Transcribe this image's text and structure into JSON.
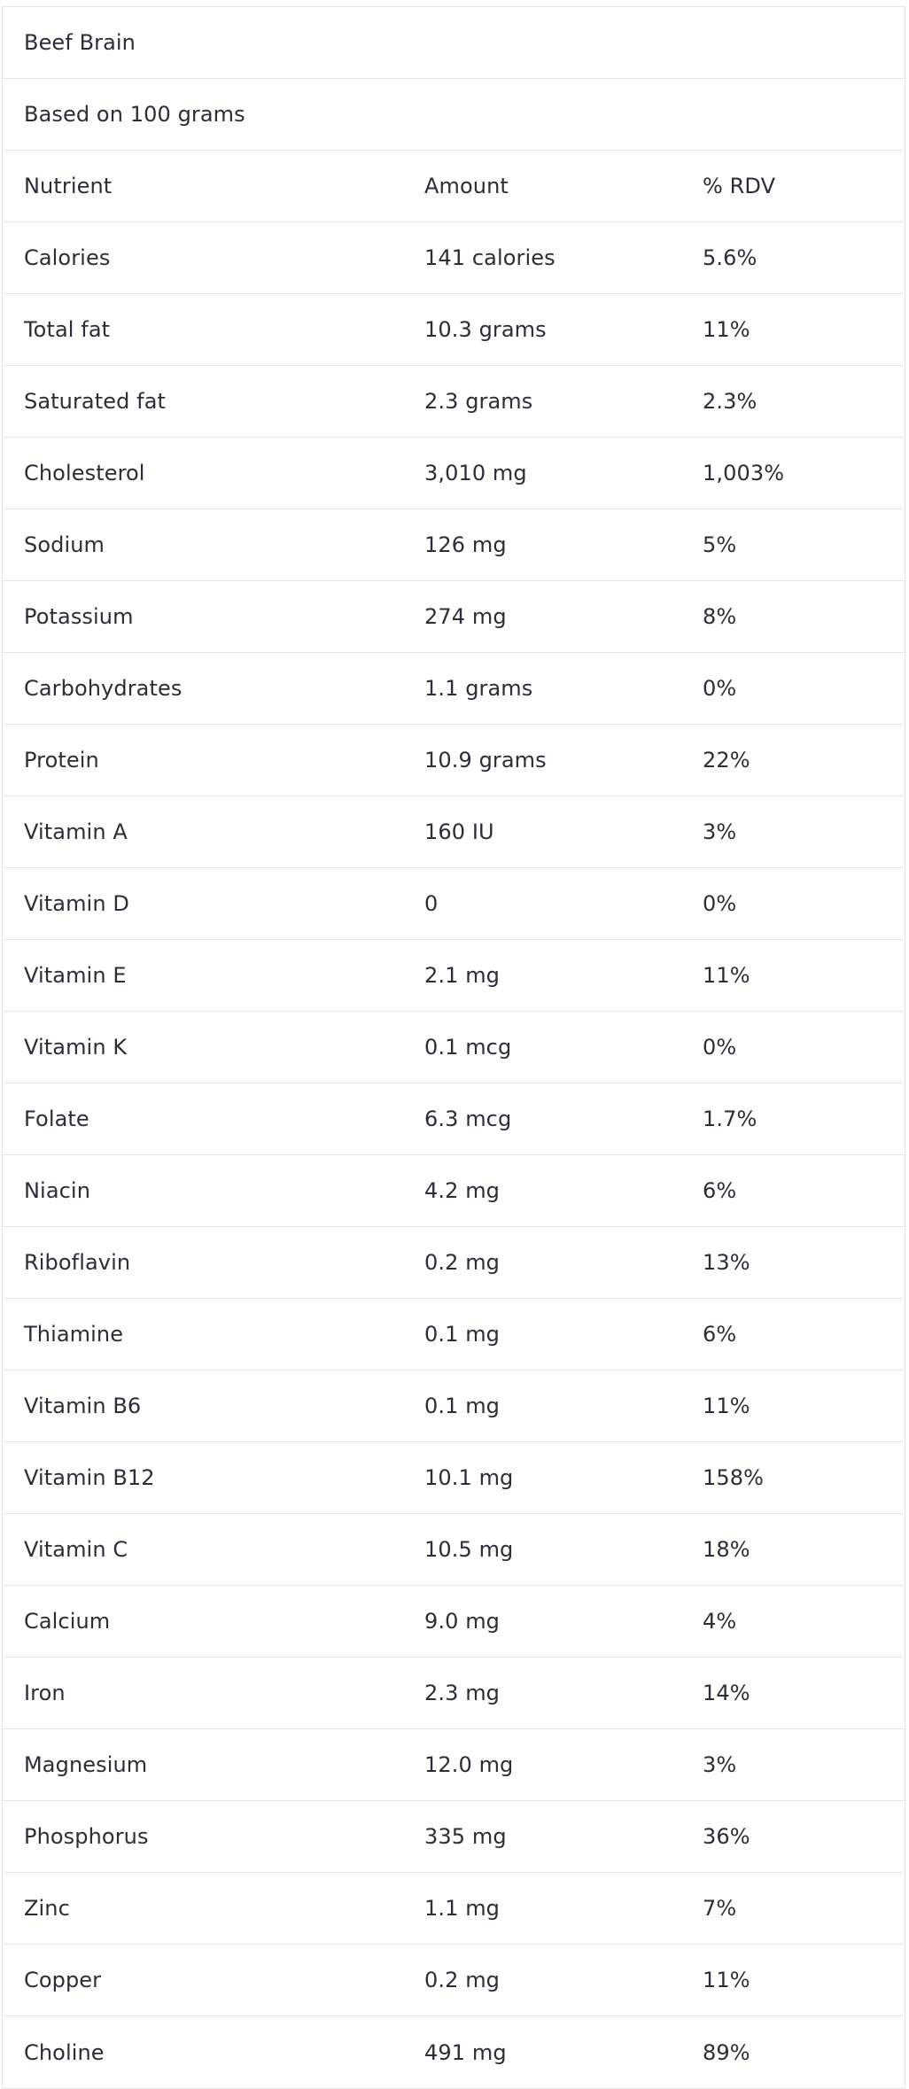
{
  "title": "Beef Brain",
  "subtitle": "Based on 100 grams",
  "headers": {
    "nutrient": "Nutrient",
    "amount": "Amount",
    "rdv": "% RDV"
  },
  "rows": [
    {
      "nutrient": "Calories",
      "amount": "141 calories",
      "rdv": "5.6%"
    },
    {
      "nutrient": "Total fat",
      "amount": "10.3 grams",
      "rdv": "11%"
    },
    {
      "nutrient": "Saturated fat",
      "amount": "2.3 grams",
      "rdv": "2.3%"
    },
    {
      "nutrient": "Cholesterol",
      "amount": "3,010 mg",
      "rdv": "1,003%"
    },
    {
      "nutrient": "Sodium",
      "amount": "126 mg",
      "rdv": "5%"
    },
    {
      "nutrient": "Potassium",
      "amount": "274 mg",
      "rdv": "8%"
    },
    {
      "nutrient": "Carbohydrates",
      "amount": "1.1 grams",
      "rdv": "0%"
    },
    {
      "nutrient": "Protein",
      "amount": "10.9 grams",
      "rdv": "22%"
    },
    {
      "nutrient": "Vitamin A",
      "amount": "160 IU",
      "rdv": "3%"
    },
    {
      "nutrient": "Vitamin D",
      "amount": "0",
      "rdv": "0%"
    },
    {
      "nutrient": "Vitamin E",
      "amount": "2.1 mg",
      "rdv": "11%"
    },
    {
      "nutrient": "Vitamin K",
      "amount": "0.1 mcg",
      "rdv": "0%"
    },
    {
      "nutrient": "Folate",
      "amount": "6.3 mcg",
      "rdv": "1.7%"
    },
    {
      "nutrient": "Niacin",
      "amount": "4.2 mg",
      "rdv": "6%"
    },
    {
      "nutrient": "Riboflavin",
      "amount": "0.2 mg",
      "rdv": "13%"
    },
    {
      "nutrient": "Thiamine",
      "amount": "0.1 mg",
      "rdv": "6%"
    },
    {
      "nutrient": "Vitamin B6",
      "amount": "0.1 mg",
      "rdv": "11%"
    },
    {
      "nutrient": "Vitamin B12",
      "amount": "10.1 mg",
      "rdv": "158%"
    },
    {
      "nutrient": "Vitamin C",
      "amount": "10.5 mg",
      "rdv": "18%"
    },
    {
      "nutrient": "Calcium",
      "amount": "9.0 mg",
      "rdv": "4%"
    },
    {
      "nutrient": "Iron",
      "amount": "2.3 mg",
      "rdv": "14%"
    },
    {
      "nutrient": "Magnesium",
      "amount": "12.0 mg",
      "rdv": "3%"
    },
    {
      "nutrient": "Phosphorus",
      "amount": "335 mg",
      "rdv": "36%"
    },
    {
      "nutrient": "Zinc",
      "amount": "1.1 mg",
      "rdv": "7%"
    },
    {
      "nutrient": "Copper",
      "amount": "0.2 mg",
      "rdv": "11%"
    },
    {
      "nutrient": "Choline",
      "amount": "491 mg",
      "rdv": "89%"
    }
  ]
}
